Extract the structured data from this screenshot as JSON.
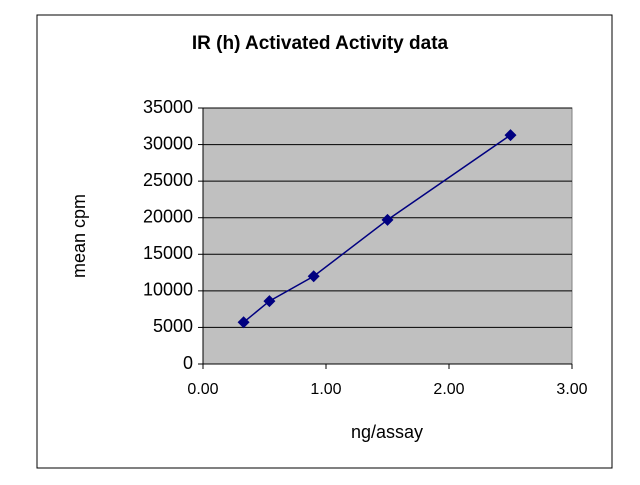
{
  "chart_data": {
    "type": "line",
    "title": "IR (h) Activated Activity data",
    "x_label": "ng/assay",
    "y_label": "mean cpm",
    "series": [
      {
        "color": "#000080",
        "x": [
          0.33,
          0.54,
          0.9,
          1.5,
          2.5
        ],
        "values": [
          5700,
          8600,
          12000,
          19700,
          31300
        ]
      }
    ],
    "xlim": [
      0,
      3
    ],
    "xticks": [
      {
        "value": 0,
        "label": "0.00"
      },
      {
        "value": 1,
        "label": "1.00"
      },
      {
        "value": 2,
        "label": "2.00"
      },
      {
        "value": 3,
        "label": "3.00"
      }
    ],
    "ylim": [
      0,
      35000
    ],
    "yticks": [
      0,
      5000,
      10000,
      15000,
      20000,
      25000,
      30000,
      35000
    ],
    "grid": true,
    "plot_background": "#c0c0c0"
  }
}
